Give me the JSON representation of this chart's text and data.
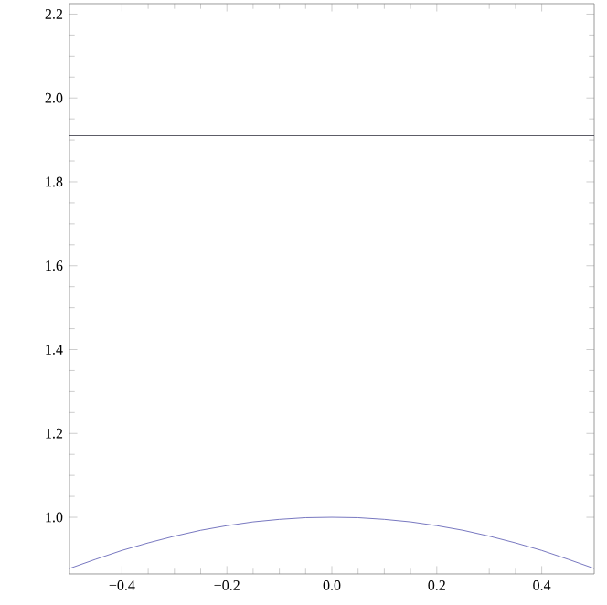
{
  "chart_data": {
    "type": "line",
    "xlim": [
      -0.5,
      0.5
    ],
    "ylim": [
      0.865,
      2.225
    ],
    "xticks": [
      {
        "value": -0.4,
        "label": "−0.4"
      },
      {
        "value": -0.2,
        "label": "−0.2"
      },
      {
        "value": 0,
        "label": "0.0"
      },
      0.2,
      0.4
    ],
    "yticks": [
      {
        "value": 1,
        "label": "1.0"
      },
      1.2,
      1.4,
      1.6,
      1.8,
      {
        "value": 2,
        "label": "2.0"
      },
      2.2
    ],
    "grid": false,
    "marker": "none",
    "line_style": "solid",
    "series": [
      {
        "color": "#333340",
        "x": [
          -0.5,
          0,
          0.5
        ],
        "values": [
          1.91,
          1.91,
          1.91
        ]
      },
      {
        "color": "#5555b0",
        "x": [
          -0.5,
          -0.45,
          -0.4,
          -0.35,
          -0.3,
          -0.25,
          -0.2,
          -0.15,
          -0.1,
          -0.05,
          0,
          0.05,
          0.1,
          0.15,
          0.2,
          0.25,
          0.3,
          0.35,
          0.4,
          0.45,
          0.5
        ],
        "values": [
          0.878,
          0.9,
          0.921,
          0.939,
          0.955,
          0.969,
          0.98,
          0.989,
          0.995,
          0.999,
          1.0,
          0.999,
          0.995,
          0.989,
          0.98,
          0.969,
          0.955,
          0.939,
          0.921,
          0.9,
          0.878
        ]
      }
    ]
  }
}
